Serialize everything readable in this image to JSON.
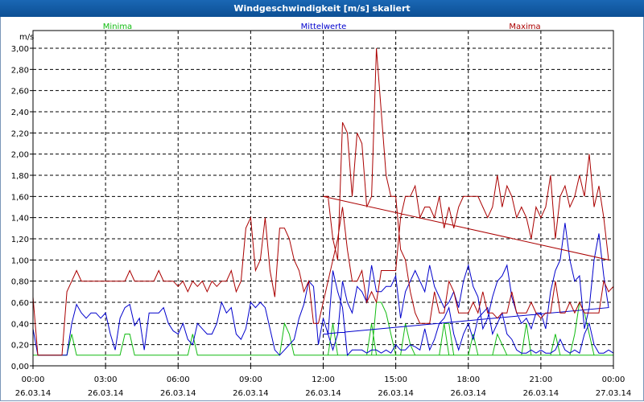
{
  "window": {
    "title": "Windgeschwindigkeit [m/s] skaliert"
  },
  "colors": {
    "minima": "#11bb11",
    "mittelwerte": "#0000cc",
    "maxima": "#aa0000",
    "grid": "#000000"
  },
  "chart_data": {
    "type": "line",
    "title": "Windgeschwindigkeit [m/s] skaliert",
    "ylabel": "m/s",
    "ylim": [
      0,
      3.0
    ],
    "xlim": [
      "26.03.14 00:00",
      "27.03.14 00:00"
    ],
    "grid": true,
    "legend_placement": "top",
    "yticks": [
      "0,00",
      "0,20",
      "0,40",
      "0,60",
      "0,80",
      "1,00",
      "1,20",
      "1,40",
      "1,60",
      "1,80",
      "2,00",
      "2,20",
      "2,40",
      "2,60",
      "2,80",
      "3,00"
    ],
    "xticks": [
      {
        "time": "00:00",
        "date": "26.03.14"
      },
      {
        "time": "03:00",
        "date": "26.03.14"
      },
      {
        "time": "06:00",
        "date": "26.03.14"
      },
      {
        "time": "09:00",
        "date": "26.03.14"
      },
      {
        "time": "12:00",
        "date": "26.03.14"
      },
      {
        "time": "15:00",
        "date": "26.03.14"
      },
      {
        "time": "18:00",
        "date": "26.03.14"
      },
      {
        "time": "21:00",
        "date": "26.03.14"
      },
      {
        "time": "00:00",
        "date": "27.03.14"
      }
    ],
    "x_hours": [
      0,
      0.2,
      0.4,
      0.6,
      0.8,
      1,
      1.2,
      1.4,
      1.6,
      1.8,
      2,
      2.2,
      2.4,
      2.6,
      2.8,
      3,
      3.2,
      3.4,
      3.6,
      3.8,
      4,
      4.2,
      4.4,
      4.6,
      4.8,
      5,
      5.2,
      5.4,
      5.6,
      5.8,
      6,
      6.2,
      6.4,
      6.6,
      6.8,
      7,
      7.2,
      7.4,
      7.6,
      7.8,
      8,
      8.2,
      8.4,
      8.6,
      8.8,
      9,
      9.2,
      9.4,
      9.6,
      9.8,
      10,
      10.2,
      10.4,
      10.6,
      10.8,
      11,
      11.2,
      11.4,
      11.6,
      11.8,
      12,
      12.2,
      12.4,
      12.6,
      12.8,
      13,
      13.2,
      13.4,
      13.6,
      13.8,
      14,
      14.2,
      14.4,
      14.6,
      14.8,
      15,
      15.2,
      15.4,
      15.6,
      15.8,
      16,
      16.2,
      16.4,
      16.6,
      16.8,
      17,
      17.2,
      17.4,
      17.6,
      17.8,
      18,
      18.2,
      18.4,
      18.6,
      18.8,
      19,
      19.2,
      19.4,
      19.6,
      19.8,
      20,
      20.2,
      20.4,
      20.6,
      20.8,
      21,
      21.2,
      21.4,
      21.6,
      21.8,
      22,
      22.2,
      22.4,
      22.6,
      22.8,
      23,
      23.2,
      23.4,
      23.6,
      23.8
    ],
    "series": [
      {
        "name": "Minima",
        "values": [
          0.1,
          0.1,
          0.1,
          0.1,
          0.1,
          0.1,
          0.1,
          0.1,
          0.3,
          0.1,
          0.1,
          0.1,
          0.1,
          0.1,
          0.1,
          0.1,
          0.1,
          0.1,
          0.1,
          0.3,
          0.3,
          0.1,
          0.1,
          0.1,
          0.1,
          0.1,
          0.1,
          0.1,
          0.1,
          0.1,
          0.1,
          0.1,
          0.1,
          0.3,
          0.1,
          0.1,
          0.1,
          0.1,
          0.1,
          0.1,
          0.1,
          0.1,
          0.1,
          0.1,
          0.1,
          0.1,
          0.1,
          0.1,
          0.1,
          0.1,
          0.1,
          0.1,
          0.4,
          0.3,
          0.1,
          0.1,
          0.1,
          0.1,
          0.1,
          0.1,
          0.1,
          0.1,
          0.4,
          0.1,
          0.1,
          0.1,
          0.1,
          0.1,
          0.1,
          0.1,
          0.4,
          0.1,
          0.1,
          0.1,
          0.1,
          0.1,
          0.1,
          0.4,
          0.2,
          0.1,
          0.1,
          0.1,
          0.1,
          0.1,
          0.1,
          0.4,
          0.4,
          0.1,
          0.1,
          0.1,
          0.1,
          0.3,
          0.1,
          0.1,
          0.1,
          0.1,
          0.3,
          0.2,
          0.1,
          0.1,
          0.1,
          0.1,
          0.4,
          0.1,
          0.1,
          0.1,
          0.1,
          0.1,
          0.3,
          0.1,
          0.1,
          0.1,
          0.3,
          0.6,
          0.5,
          0.3,
          0.1,
          0.1,
          0.1,
          0.1
        ],
        "values_b": [
          0.1,
          0.1,
          0.1,
          0.1,
          0.1,
          0.1,
          0.1,
          0.1,
          0.1,
          0.1,
          0.1,
          0.6,
          0.6,
          0.5,
          0.3,
          0.1,
          0.1,
          0.1,
          0.1,
          0.1,
          0.1,
          0.1,
          0.1,
          0.1,
          0.1,
          0.4,
          0.1,
          0.1,
          0.1,
          0.1,
          0.1,
          0.1,
          0.1,
          0.1,
          0.1,
          0.1,
          0.1,
          0.1,
          0.1,
          0.1,
          0.1,
          0.1,
          0.1,
          0.1,
          0.1,
          0.1,
          0.1,
          0.1,
          0.1,
          0.1,
          0.1,
          0.1,
          0.1,
          0.1,
          0.1,
          0.1,
          0.1,
          0.1,
          0.1,
          0.1,
          0.1,
          0.1,
          0.1,
          0.1,
          0.1,
          0.1,
          0.1,
          0.1,
          0.1,
          0.1,
          0.1,
          0.1,
          0.1,
          0.1,
          0.1,
          0.1,
          0.1,
          0.1,
          0.1,
          0.1,
          0.1,
          0.1,
          0.1,
          0.1,
          0.1,
          0.1,
          0.1,
          0.1,
          0.1,
          0.1,
          0.1,
          0.1,
          0.1,
          0.1,
          0.1,
          0.1,
          0.1,
          0.1,
          0.1,
          0.1,
          0.1,
          0.1,
          0.1,
          0.1,
          0.1,
          0.1,
          0.1,
          0.1,
          0.1,
          0.1,
          0.1,
          0.1,
          0.1,
          0.1,
          0.1,
          0.1,
          0.1,
          0.1,
          0.1,
          0.1
        ]
      },
      {
        "name": "Mittelwerte",
        "values": [
          0.35,
          0.1,
          0.1,
          0.1,
          0.1,
          0.1,
          0.1,
          0.1,
          0.4,
          0.58,
          0.5,
          0.45,
          0.5,
          0.5,
          0.45,
          0.5,
          0.3,
          0.15,
          0.45,
          0.55,
          0.58,
          0.38,
          0.45,
          0.15,
          0.5,
          0.5,
          0.5,
          0.55,
          0.4,
          0.33,
          0.3,
          0.4,
          0.25,
          0.2,
          0.4,
          0.35,
          0.3,
          0.3,
          0.4,
          0.6,
          0.5,
          0.55,
          0.3,
          0.25,
          0.35,
          0.6,
          0.55,
          0.6,
          0.55,
          0.35,
          0.15,
          0.1,
          0.15,
          0.2,
          0.25,
          0.45,
          0.58,
          0.8,
          0.75,
          0.2,
          0.45,
          0.3,
          0.15,
          0.3,
          0.8,
          0.6,
          0.5,
          0.75,
          0.7,
          0.6,
          0.95,
          0.7,
          0.7,
          0.75,
          0.75,
          0.85,
          0.45,
          0.7,
          0.8,
          0.9,
          0.8,
          0.7,
          0.95,
          0.75,
          0.65,
          0.55,
          0.6,
          0.7,
          0.55,
          0.8,
          0.95,
          0.75,
          0.65,
          0.35,
          0.45,
          0.65,
          0.8,
          0.85,
          0.95,
          0.65,
          0.5,
          0.4,
          0.45,
          0.35,
          0.5,
          0.5,
          0.35,
          0.7,
          0.9,
          1.0,
          1.35,
          1.0,
          0.8,
          0.85,
          0.35,
          0.55,
          1.0,
          1.25,
          0.85,
          0.55
        ],
        "values_b": [
          0.3,
          0.3,
          0.9,
          0.7,
          0.55,
          0.1,
          0.15,
          0.15,
          0.15,
          0.12,
          0.15,
          0.15,
          0.12,
          0.15,
          0.12,
          0.2,
          0.15,
          0.15,
          0.2,
          0.18,
          0.15,
          0.35,
          0.15,
          0.25,
          0.4,
          0.45,
          0.55,
          0.3,
          0.15,
          0.3,
          0.4,
          0.25,
          0.45,
          0.5,
          0.55,
          0.3,
          0.4,
          0.5,
          0.3,
          0.25,
          0.15,
          0.12,
          0.12,
          0.15,
          0.12,
          0.15,
          0.12,
          0.12,
          0.15,
          0.25,
          0.15,
          0.12,
          0.15,
          0.12,
          0.3,
          0.4,
          0.2,
          0.12,
          0.12,
          0.15,
          0.12,
          0.12,
          0.1,
          0.12,
          0.15,
          0.12,
          0.15,
          0.15,
          0.2,
          0.12,
          0.12,
          0.12,
          0.12,
          0.12,
          0.12,
          0.12,
          0.12,
          0.12,
          0.12,
          0.12,
          0.12,
          0.12,
          0.12,
          0.12,
          0.12,
          0.12,
          0.12,
          0.12,
          0.12,
          0.12,
          0.12,
          0.12,
          0.12,
          0.12,
          0.12,
          0.12,
          0.12,
          0.12,
          0.12,
          0.12,
          0.12,
          0.12,
          0.12,
          0.12,
          0.12,
          0.12,
          0.12,
          0.12,
          0.12,
          0.12,
          0.12,
          0.12,
          0.12,
          0.12,
          0.12,
          0.12,
          0.12,
          0.12,
          0.12,
          0.12
        ]
      },
      {
        "name": "Maxima",
        "values": [
          0.65,
          0.1,
          0.1,
          0.1,
          0.1,
          0.1,
          0.1,
          0.7,
          0.8,
          0.9,
          0.8,
          0.8,
          0.8,
          0.8,
          0.8,
          0.8,
          0.8,
          0.8,
          0.8,
          0.8,
          0.9,
          0.8,
          0.8,
          0.8,
          0.8,
          0.8,
          0.9,
          0.8,
          0.8,
          0.8,
          0.75,
          0.8,
          0.7,
          0.8,
          0.75,
          0.8,
          0.7,
          0.8,
          0.75,
          0.8,
          0.8,
          0.9,
          0.7,
          0.8,
          1.3,
          1.4,
          0.9,
          1.0,
          1.4,
          0.9,
          0.65,
          1.3,
          1.3,
          1.2,
          1.0,
          0.9,
          0.7,
          0.8,
          0.4,
          0.4,
          0.6,
          0.8,
          1.0,
          1.2,
          1.5,
          1.1,
          0.8,
          0.8,
          0.9,
          0.6,
          0.7,
          0.6,
          0.9,
          0.9,
          0.9,
          0.9,
          1.4,
          1.6,
          1.6,
          1.7,
          1.4,
          1.5,
          1.5,
          1.4,
          1.6,
          1.3,
          1.5,
          1.3,
          1.5,
          1.6,
          1.6,
          1.6,
          1.6,
          1.5,
          1.4,
          1.5,
          1.8,
          1.5,
          1.7,
          1.6,
          1.4,
          1.5,
          1.4,
          1.2,
          1.5,
          1.4,
          1.5,
          1.8,
          1.2,
          1.6,
          1.7,
          1.5,
          1.6,
          1.8,
          1.6,
          2.0,
          1.5,
          1.7,
          1.4,
          1.0
        ],
        "values_b": [
          1.6,
          1.6,
          1.2,
          1.0,
          2.3,
          2.2,
          1.6,
          2.2,
          2.1,
          1.5,
          1.6,
          3.0,
          2.4,
          1.8,
          1.6,
          1.6,
          1.1,
          1.0,
          0.7,
          0.5,
          0.4,
          0.4,
          0.4,
          0.7,
          0.5,
          0.5,
          0.8,
          0.7,
          0.5,
          0.5,
          0.5,
          0.6,
          0.5,
          0.7,
          0.5,
          0.5,
          0.45,
          0.5,
          0.5,
          0.7,
          0.5,
          0.5,
          0.5,
          0.6,
          0.5,
          0.45,
          0.5,
          0.5,
          0.8,
          0.5,
          0.5,
          0.6,
          0.5,
          0.6,
          0.5,
          0.5,
          0.5,
          0.5,
          0.8,
          0.7,
          0.75,
          0.85,
          0.75,
          0.5,
          0.5,
          0.5,
          0.5,
          0.9,
          0.9,
          0.7,
          1.0,
          1.1,
          1.2,
          0.8,
          0.6,
          0.5,
          0.4,
          0.3,
          0.4,
          0.3,
          0.9,
          0.9,
          0.7,
          0.3,
          0.3,
          0.4,
          0.3,
          0.3,
          0.5,
          0.5,
          0.6,
          0.6,
          0.5,
          0.4,
          0.4,
          0.5,
          0.6,
          0.9,
          0.5,
          0.3,
          0.5,
          0.8,
          0.8,
          0.5,
          0.4,
          0.5,
          0.5,
          0.6,
          0.6,
          0.5,
          0.7,
          0.8,
          0.9,
          0.7,
          0.5,
          0.8,
          0.9,
          0.6,
          0.5,
          0.5
        ]
      }
    ]
  }
}
